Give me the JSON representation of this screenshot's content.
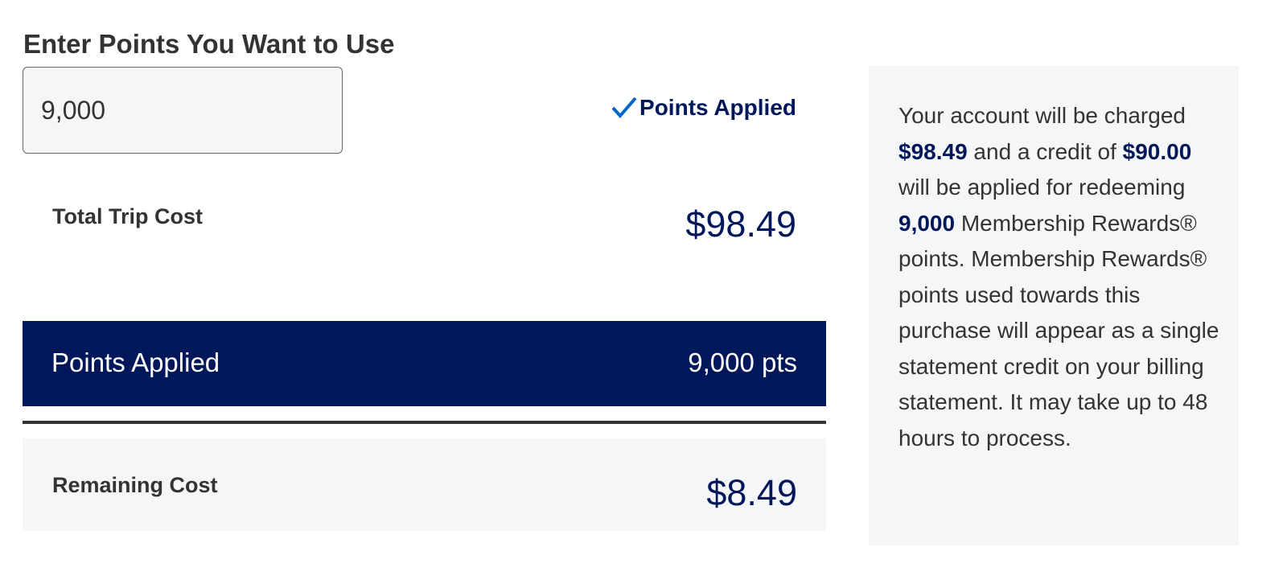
{
  "heading": "Enter Points You Want to Use",
  "points_input": {
    "value": "9,000"
  },
  "status": {
    "label": "Points Applied",
    "icon": "checkmark-icon",
    "color": "#0067c8"
  },
  "total_trip_cost": {
    "label": "Total Trip Cost",
    "amount": "$98.49"
  },
  "points_applied_bar": {
    "label": "Points Applied",
    "value": "9,000 pts",
    "color": "#00175a"
  },
  "remaining_cost": {
    "label": "Remaining Cost",
    "amount": "$8.49"
  },
  "info_panel": {
    "t1": "Your account will be charged ",
    "b1": "$98.49",
    "t2": " and a credit of ",
    "b2": "$90.00",
    "t3": " will be applied for redeeming ",
    "b3": "9,000",
    "t4": " Membership Rewards® points. Membership Rewards® points used towards this purchase will appear as a single statement credit on your billing statement. It may take up to 48 hours to process."
  }
}
